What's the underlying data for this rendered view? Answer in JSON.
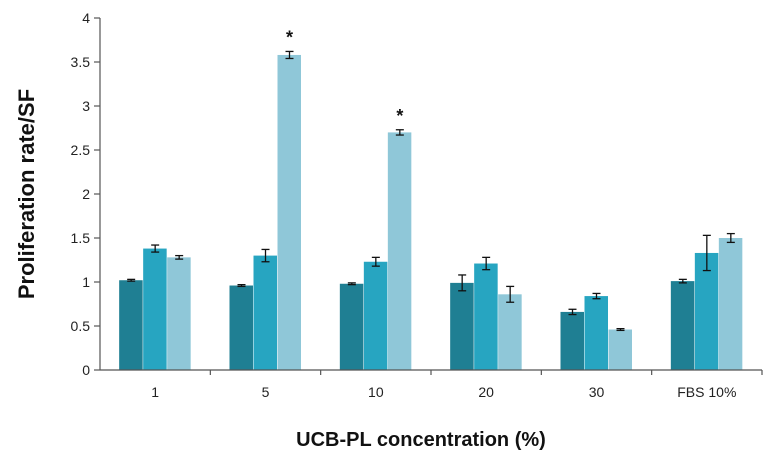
{
  "chart_data": {
    "type": "bar",
    "title": "",
    "xlabel": "UCB-PL concentration (%)",
    "ylabel": "Proliferation rate/SF",
    "ylim": [
      0,
      4
    ],
    "yticks": [
      "0",
      "0.5",
      "1",
      "1.5",
      "2",
      "2.5",
      "3",
      "3.5",
      "4"
    ],
    "categories": [
      "1",
      "5",
      "10",
      "20",
      "30",
      "FBS 10%"
    ],
    "grid": false,
    "legend": "none",
    "series": [
      {
        "color": "#1f7f93",
        "values": [
          1.02,
          0.96,
          0.98,
          0.99,
          0.66,
          1.01
        ],
        "errors": [
          0.01,
          0.01,
          0.01,
          0.09,
          0.03,
          0.02
        ]
      },
      {
        "color": "#27a5c1",
        "values": [
          1.38,
          1.3,
          1.23,
          1.21,
          0.84,
          1.33
        ],
        "errors": [
          0.04,
          0.07,
          0.05,
          0.07,
          0.03,
          0.2
        ]
      },
      {
        "color": "#8fc7d8",
        "values": [
          1.28,
          3.58,
          2.7,
          0.86,
          0.46,
          1.5
        ],
        "errors": [
          0.02,
          0.04,
          0.03,
          0.09,
          0.01,
          0.05
        ]
      }
    ],
    "annotations": [
      {
        "text": "*",
        "category": "5",
        "series": 2
      },
      {
        "text": "*",
        "category": "10",
        "series": 2
      }
    ]
  }
}
